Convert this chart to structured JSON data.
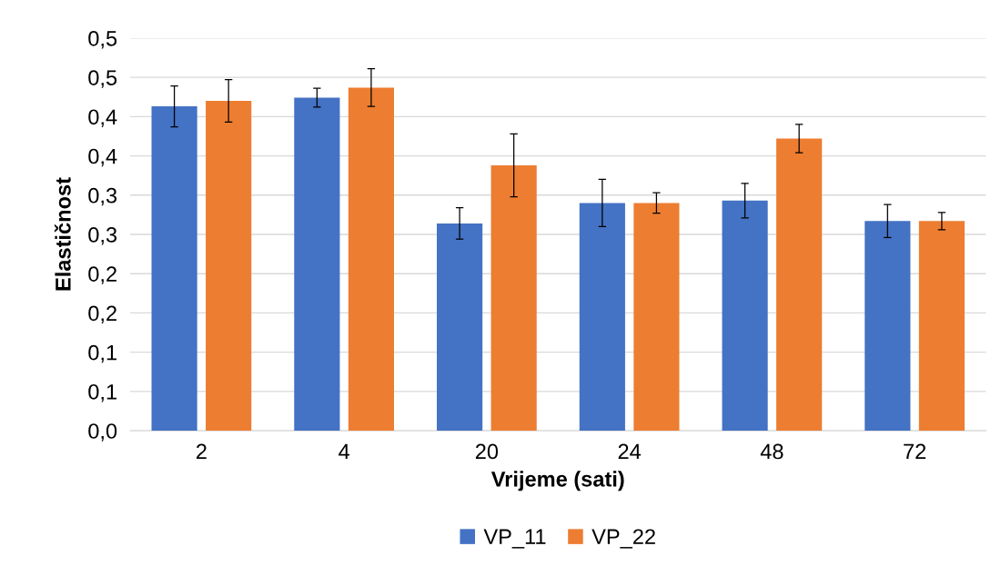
{
  "chart_data": {
    "type": "bar",
    "xlabel": "Vrijeme (sati)",
    "ylabel": "Elastičnost",
    "categories": [
      "2",
      "4",
      "20",
      "24",
      "48",
      "72"
    ],
    "series": [
      {
        "name": "VP_11",
        "color": "#4472c4",
        "values": [
          0.413,
          0.424,
          0.264,
          0.29,
          0.293,
          0.267
        ],
        "errors": [
          0.026,
          0.012,
          0.02,
          0.03,
          0.022,
          0.021
        ]
      },
      {
        "name": "VP_22",
        "color": "#ed7d31",
        "values": [
          0.42,
          0.437,
          0.338,
          0.29,
          0.372,
          0.267
        ],
        "errors": [
          0.027,
          0.024,
          0.04,
          0.013,
          0.018,
          0.011
        ]
      }
    ],
    "ylim": [
      0,
      0.5
    ],
    "yticks": [
      {
        "value": 0,
        "label": "0,0"
      },
      {
        "value": 0.05,
        "label": "0,1"
      },
      {
        "value": 0.1,
        "label": "0,1"
      },
      {
        "value": 0.15,
        "label": "0,2"
      },
      {
        "value": 0.2,
        "label": "0,2"
      },
      {
        "value": 0.25,
        "label": "0,3"
      },
      {
        "value": 0.3,
        "label": "0,3"
      },
      {
        "value": 0.35,
        "label": "0,4"
      },
      {
        "value": 0.4,
        "label": "0,4"
      },
      {
        "value": 0.45,
        "label": "0,5"
      },
      {
        "value": 0.5,
        "label": "0,5"
      }
    ],
    "grid": "y",
    "legend": "bottom"
  }
}
